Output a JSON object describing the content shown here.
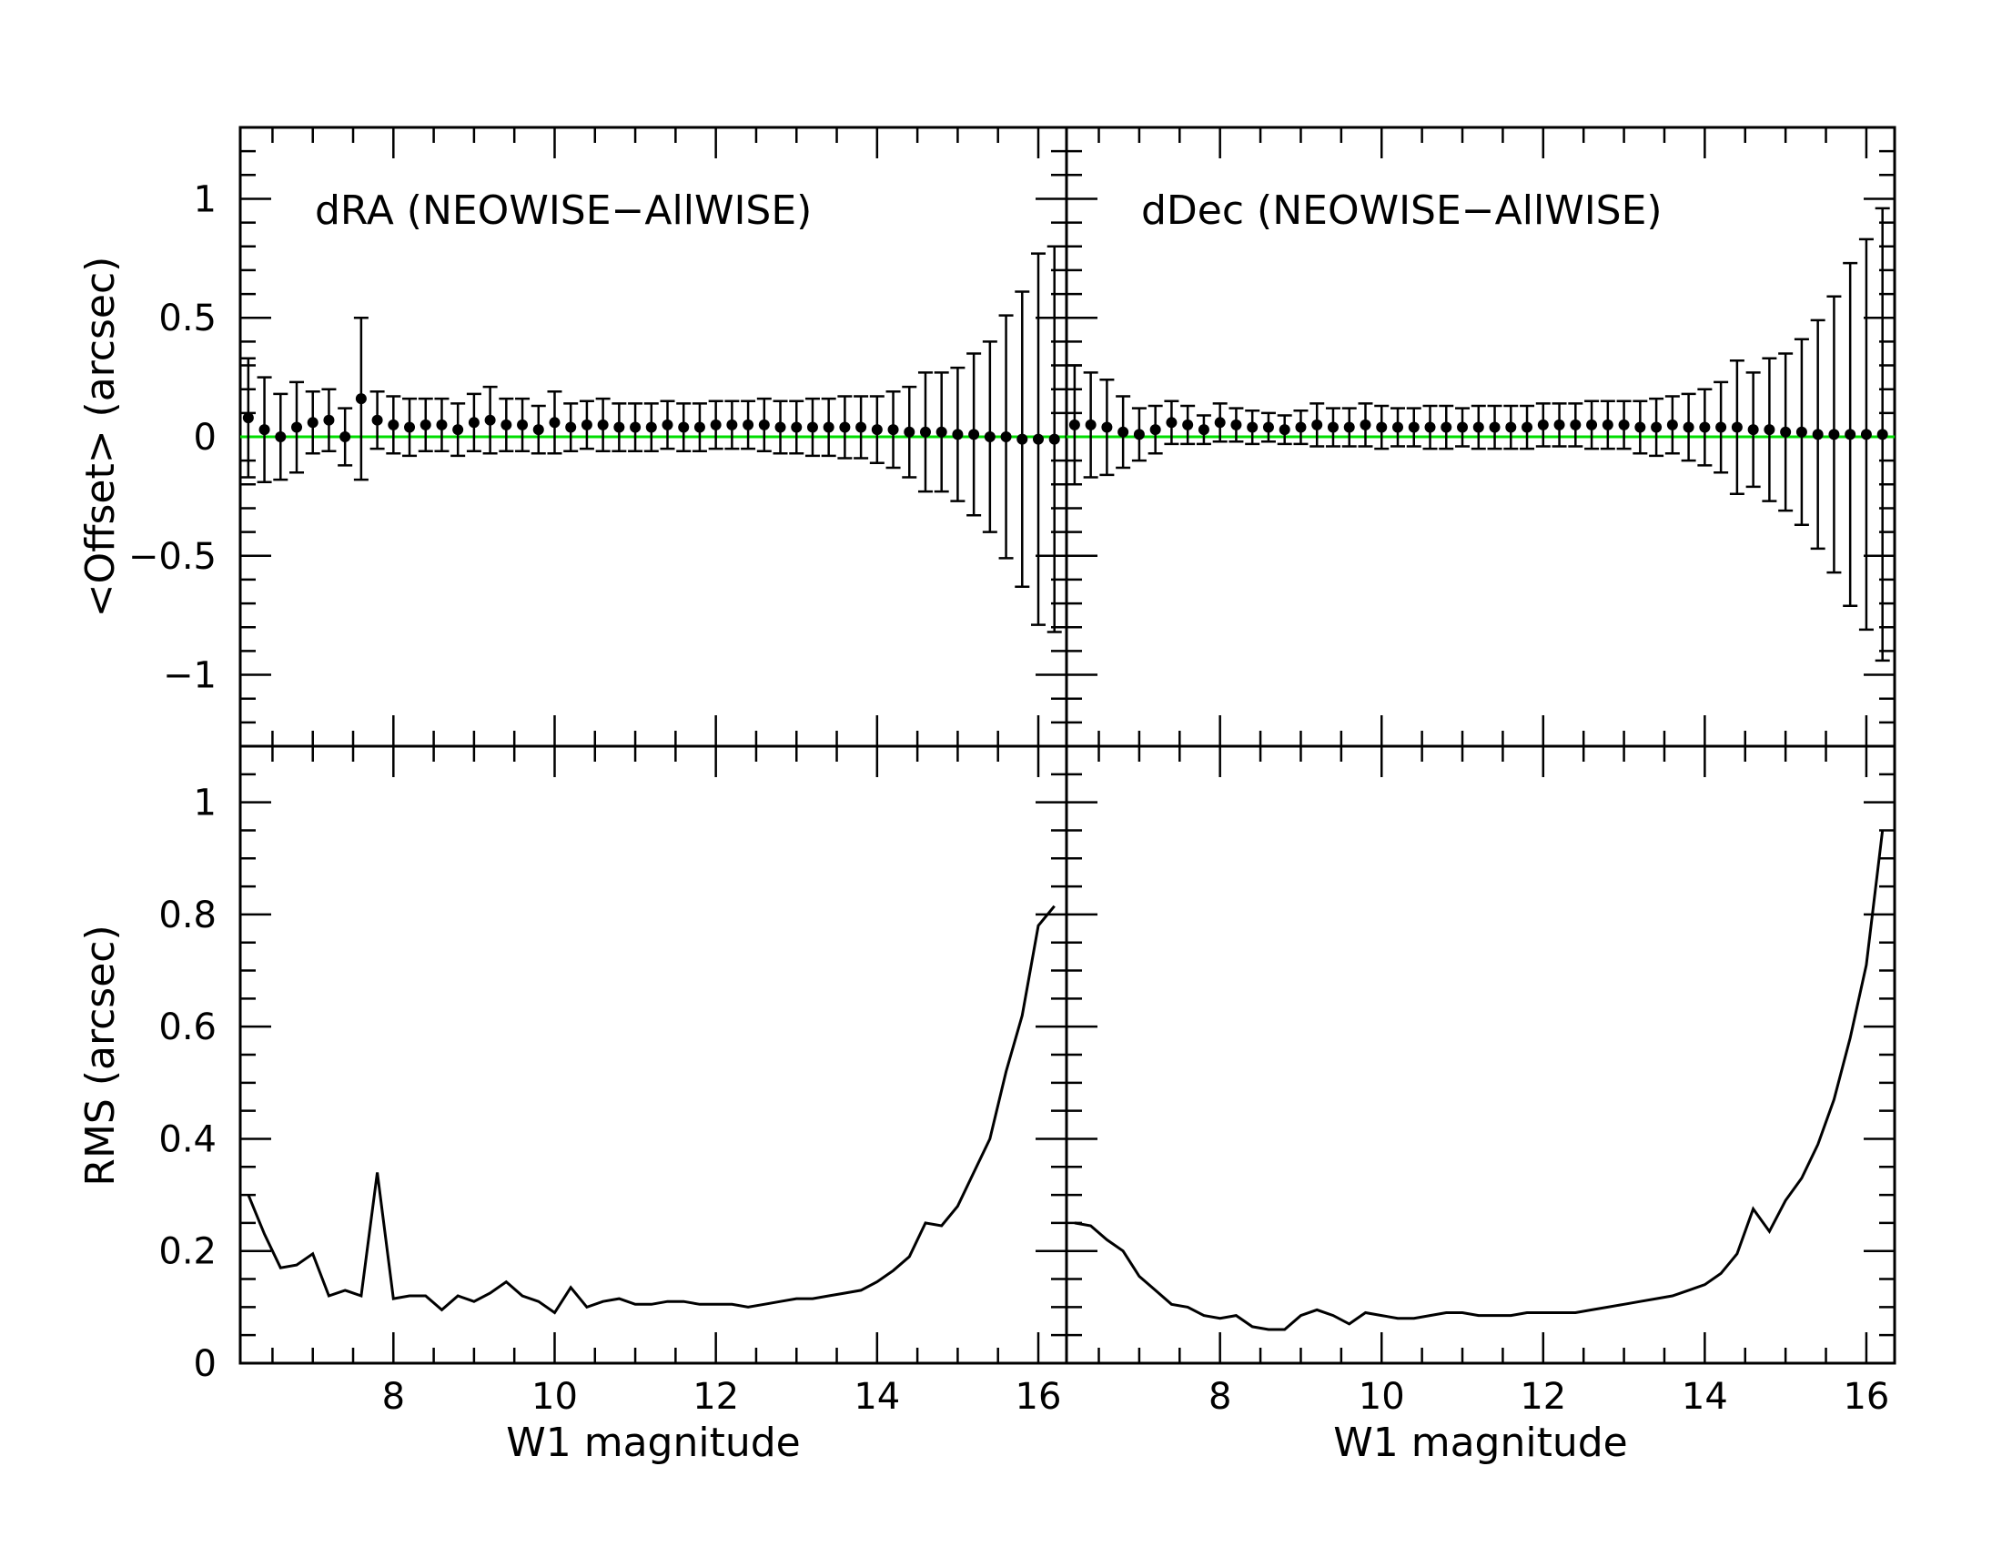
{
  "chart_data": {
    "type": "scatter",
    "xlabel": "W1 magnitude",
    "xlim": [
      6.1,
      16.35
    ],
    "x_ticks": [
      "8",
      "10",
      "12",
      "14",
      "16"
    ],
    "offset_ylabel": "<Offset> (arcsec)",
    "offset_ylim": [
      -1.3,
      1.3
    ],
    "offset_ticks": [
      "1",
      "0.5",
      "0",
      "−0.5",
      "−1"
    ],
    "rms_ylabel": "RMS (arcsec)",
    "rms_ylim": [
      0,
      1.1
    ],
    "rms_ticks": [
      "1",
      "0.8",
      "0.6",
      "0.4",
      "0.2",
      "0"
    ],
    "zero_line_color": "#00dd00",
    "x": [
      6.2,
      6.4,
      6.6,
      6.8,
      7.0,
      7.2,
      7.4,
      7.6,
      7.8,
      8.0,
      8.2,
      8.4,
      8.6,
      8.8,
      9.0,
      9.2,
      9.4,
      9.6,
      9.8,
      10.0,
      10.2,
      10.4,
      10.6,
      10.8,
      11.0,
      11.2,
      11.4,
      11.6,
      11.8,
      12.0,
      12.2,
      12.4,
      12.6,
      12.8,
      13.0,
      13.2,
      13.4,
      13.6,
      13.8,
      14.0,
      14.2,
      14.4,
      14.6,
      14.8,
      15.0,
      15.2,
      15.4,
      15.6,
      15.8,
      16.0,
      16.2
    ],
    "panels": [
      {
        "title": "dRA (NEOWISE−AllWISE)",
        "offset": [
          0.08,
          0.03,
          0.0,
          0.04,
          0.06,
          0.07,
          0.0,
          0.16,
          0.07,
          0.05,
          0.04,
          0.05,
          0.05,
          0.03,
          0.06,
          0.07,
          0.05,
          0.05,
          0.03,
          0.06,
          0.04,
          0.05,
          0.05,
          0.04,
          0.04,
          0.04,
          0.05,
          0.04,
          0.04,
          0.05,
          0.05,
          0.05,
          0.05,
          0.04,
          0.04,
          0.04,
          0.04,
          0.04,
          0.04,
          0.03,
          0.03,
          0.02,
          0.02,
          0.02,
          0.01,
          0.01,
          0.0,
          0.0,
          -0.01,
          -0.01,
          -0.01
        ],
        "offset_err": [
          0.25,
          0.22,
          0.18,
          0.19,
          0.13,
          0.13,
          0.12,
          0.34,
          0.12,
          0.12,
          0.12,
          0.11,
          0.11,
          0.11,
          0.12,
          0.14,
          0.11,
          0.11,
          0.1,
          0.13,
          0.1,
          0.1,
          0.11,
          0.1,
          0.1,
          0.1,
          0.1,
          0.1,
          0.1,
          0.1,
          0.1,
          0.1,
          0.11,
          0.11,
          0.11,
          0.12,
          0.12,
          0.13,
          0.13,
          0.14,
          0.16,
          0.19,
          0.25,
          0.25,
          0.28,
          0.34,
          0.4,
          0.51,
          0.62,
          0.78,
          0.81
        ],
        "rms": [
          0.3,
          0.23,
          0.17,
          0.175,
          0.195,
          0.12,
          0.13,
          0.12,
          0.34,
          0.115,
          0.12,
          0.12,
          0.095,
          0.12,
          0.11,
          0.125,
          0.145,
          0.12,
          0.11,
          0.09,
          0.135,
          0.1,
          0.11,
          0.115,
          0.105,
          0.105,
          0.11,
          0.11,
          0.105,
          0.105,
          0.105,
          0.1,
          0.105,
          0.11,
          0.115,
          0.115,
          0.12,
          0.125,
          0.13,
          0.145,
          0.165,
          0.19,
          0.25,
          0.245,
          0.28,
          0.34,
          0.4,
          0.52,
          0.62,
          0.78,
          0.815
        ]
      },
      {
        "title": "dDec (NEOWISE−AllWISE)",
        "offset": [
          0.05,
          0.05,
          0.04,
          0.02,
          0.01,
          0.03,
          0.06,
          0.05,
          0.03,
          0.06,
          0.05,
          0.04,
          0.04,
          0.03,
          0.04,
          0.05,
          0.04,
          0.04,
          0.05,
          0.04,
          0.04,
          0.04,
          0.04,
          0.04,
          0.04,
          0.04,
          0.04,
          0.04,
          0.04,
          0.05,
          0.05,
          0.05,
          0.05,
          0.05,
          0.05,
          0.04,
          0.04,
          0.05,
          0.04,
          0.04,
          0.04,
          0.04,
          0.03,
          0.03,
          0.02,
          0.02,
          0.01,
          0.01,
          0.01,
          0.01,
          0.01
        ],
        "offset_err": [
          0.25,
          0.22,
          0.2,
          0.15,
          0.11,
          0.1,
          0.09,
          0.08,
          0.06,
          0.08,
          0.07,
          0.07,
          0.06,
          0.06,
          0.07,
          0.09,
          0.08,
          0.08,
          0.09,
          0.09,
          0.08,
          0.08,
          0.09,
          0.09,
          0.08,
          0.09,
          0.09,
          0.09,
          0.09,
          0.09,
          0.09,
          0.09,
          0.1,
          0.1,
          0.1,
          0.11,
          0.12,
          0.12,
          0.14,
          0.16,
          0.19,
          0.28,
          0.24,
          0.3,
          0.33,
          0.39,
          0.48,
          0.58,
          0.72,
          0.82,
          0.95
        ],
        "rms": [
          0.25,
          0.245,
          0.22,
          0.2,
          0.155,
          0.13,
          0.105,
          0.1,
          0.085,
          0.08,
          0.085,
          0.065,
          0.06,
          0.06,
          0.085,
          0.095,
          0.085,
          0.07,
          0.09,
          0.085,
          0.08,
          0.08,
          0.085,
          0.09,
          0.09,
          0.085,
          0.085,
          0.085,
          0.09,
          0.09,
          0.09,
          0.09,
          0.095,
          0.1,
          0.105,
          0.11,
          0.115,
          0.12,
          0.13,
          0.14,
          0.16,
          0.195,
          0.275,
          0.235,
          0.29,
          0.33,
          0.39,
          0.47,
          0.58,
          0.71,
          0.95
        ]
      }
    ]
  }
}
